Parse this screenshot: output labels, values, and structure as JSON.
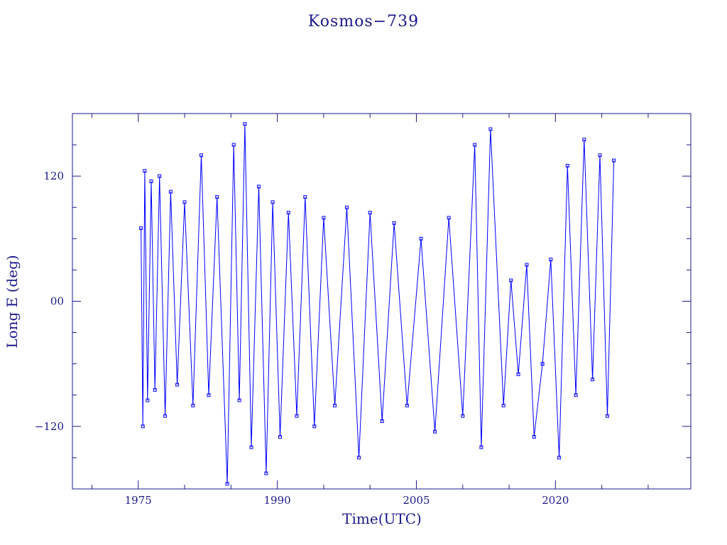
{
  "chart_data": {
    "type": "scatter",
    "title": "Kosmos−739",
    "xlabel": "Time(UTC)",
    "ylabel": "Long E (deg)",
    "xlim": [
      1967.9,
      2034.6
    ],
    "ylim": [
      -180,
      180
    ],
    "x_ticks": [
      1975,
      1990,
      2005,
      2020
    ],
    "x_tick_labels": [
      "1975",
      "1990",
      "2005",
      "2020"
    ],
    "y_ticks": [
      120,
      0,
      -120
    ],
    "y_tick_labels": [
      "120",
      "00",
      "−120"
    ],
    "grid": false,
    "legend": "none",
    "colors": {
      "series": "#0000ff",
      "axes": "#1a1a8c"
    },
    "marker": "open-square",
    "series": [
      {
        "style": "markers-with-connecting-lines",
        "x": [
          1975.3,
          1975.5,
          1975.7,
          1976.0,
          1976.4,
          1976.8,
          1977.3,
          1977.9,
          1978.5,
          1979.2,
          1980.0,
          1980.9,
          1981.8,
          1982.6,
          1983.5,
          1984.6,
          1985.3,
          1985.9,
          1986.5,
          1987.2,
          1988.0,
          1988.8,
          1989.5,
          1990.3,
          1991.2,
          1992.1,
          1993.0,
          1994.0,
          1995.0,
          1996.2,
          1997.5,
          1998.8,
          2000.0,
          2001.3,
          2002.6,
          2004.0,
          2005.5,
          2007.0,
          2008.5,
          2010.0,
          2011.3,
          2012.0,
          2013.0,
          2014.4,
          2015.2,
          2016.0,
          2016.9,
          2017.7,
          2018.6,
          2019.5,
          2020.4,
          2021.3,
          2022.2,
          2023.1,
          2024.0,
          2024.8,
          2025.6,
          2026.3
        ],
        "y": [
          70,
          -120,
          125,
          -95,
          115,
          -85,
          120,
          -110,
          105,
          -80,
          95,
          -100,
          140,
          -90,
          100,
          -175,
          150,
          -95,
          170,
          -140,
          110,
          -165,
          95,
          -130,
          85,
          -110,
          100,
          -120,
          80,
          -100,
          90,
          -150,
          85,
          -115,
          75,
          -100,
          60,
          -125,
          80,
          -110,
          150,
          -140,
          165,
          -100,
          20,
          -70,
          35,
          -130,
          -60,
          40,
          -150,
          130,
          -90,
          155,
          -75,
          140,
          -110,
          135
        ]
      }
    ]
  }
}
